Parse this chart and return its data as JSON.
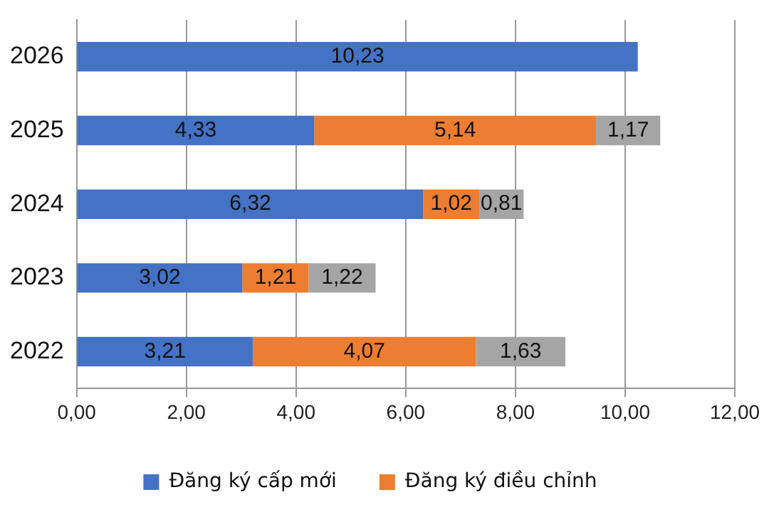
{
  "chart_data": {
    "type": "bar",
    "orientation": "horizontal",
    "stacked": true,
    "categories": [
      "2026",
      "2025",
      "2024",
      "2023",
      "2022"
    ],
    "series": [
      {
        "name": "Đăng ký cấp mới",
        "color": "#4472c4",
        "values": [
          10.23,
          4.33,
          6.32,
          3.02,
          3.21
        ],
        "value_labels": [
          "10,23",
          "4,33",
          "6,32",
          "3,02",
          "3,21"
        ]
      },
      {
        "name": "Đăng ký điều chỉnh",
        "color": "#ed7d31",
        "values": [
          null,
          5.14,
          1.02,
          1.21,
          4.07
        ],
        "value_labels": [
          null,
          "5,14",
          "1,02",
          "1,21",
          "4,07"
        ]
      },
      {
        "color": "#a5a5a5",
        "values": [
          null,
          1.17,
          0.81,
          1.22,
          1.63
        ],
        "value_labels": [
          null,
          "1,17",
          "0,81",
          "1,22",
          "1,63"
        ]
      }
    ],
    "xlim": [
      0,
      12
    ],
    "xticks": [
      {
        "value": 0,
        "label": "0,00"
      },
      {
        "value": 2,
        "label": "2,00"
      },
      {
        "value": 4,
        "label": "4,00"
      },
      {
        "value": 6,
        "label": "6,00"
      },
      {
        "value": 8,
        "label": "8,00"
      },
      {
        "value": 10,
        "label": "10,00"
      },
      {
        "value": 12,
        "label": "12,00"
      }
    ],
    "grid": "x",
    "legend": "bottom"
  }
}
